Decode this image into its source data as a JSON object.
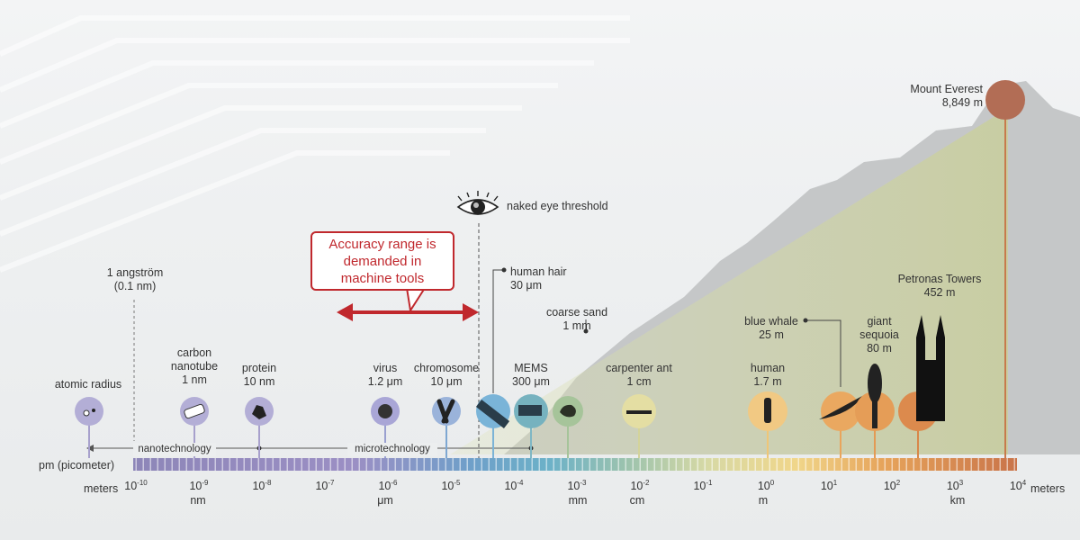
{
  "callout": {
    "line1": "Accuracy range is",
    "line2": "demanded in",
    "line3": "machine tools"
  },
  "eye_label": "naked eye threshold",
  "scale": {
    "pm_label": "pm (picometer)",
    "meters_left": "meters",
    "meters_right": "meters",
    "exponents": [
      "-10",
      "-9",
      "-8",
      "-7",
      "-6",
      "-5",
      "-4",
      "-3",
      "-2",
      "-1",
      "0",
      "1",
      "2",
      "3",
      "4"
    ],
    "units": {
      "nm": "nm",
      "um": "μm",
      "mm": "mm",
      "cm": "cm",
      "m": "m",
      "km": "km"
    },
    "nanotechnology": "nanotechnology",
    "microtechnology": "microtechnology"
  },
  "objects": {
    "angstrom": {
      "l1": "1 angström",
      "l2": "(0.1 nm)"
    },
    "atomic": {
      "l1": "atomic radius"
    },
    "nanotube": {
      "l1": "carbon",
      "l2": "nanotube",
      "l3": "1 nm"
    },
    "protein": {
      "l1": "protein",
      "l2": "10 nm"
    },
    "virus": {
      "l1": "virus",
      "l2": "1.2 μm"
    },
    "chromosome": {
      "l1": "chromosome",
      "l2": "10 μm"
    },
    "hair": {
      "l1": "human hair",
      "l2": "30 μm"
    },
    "mems": {
      "l1": "MEMS",
      "l2": "300 μm"
    },
    "sand": {
      "l1": "coarse sand",
      "l2": "1 mm"
    },
    "ant": {
      "l1": "carpenter ant",
      "l2": "1 cm"
    },
    "human": {
      "l1": "human",
      "l2": "1.7 m"
    },
    "whale": {
      "l1": "blue whale",
      "l2": "25 m"
    },
    "sequoia": {
      "l1": "giant",
      "l2": "sequoia",
      "l3": "80 m"
    },
    "petronas": {
      "l1": "Petronas Towers",
      "l2": "452 m"
    },
    "everest": {
      "l1": "Mount Everest",
      "l2": "8,849 m"
    }
  },
  "colors": {
    "accent": "#c0282d",
    "mountain": "#c8cacb",
    "scale_purple": "#8d86b8",
    "scale_orange": "#d8894a"
  }
}
